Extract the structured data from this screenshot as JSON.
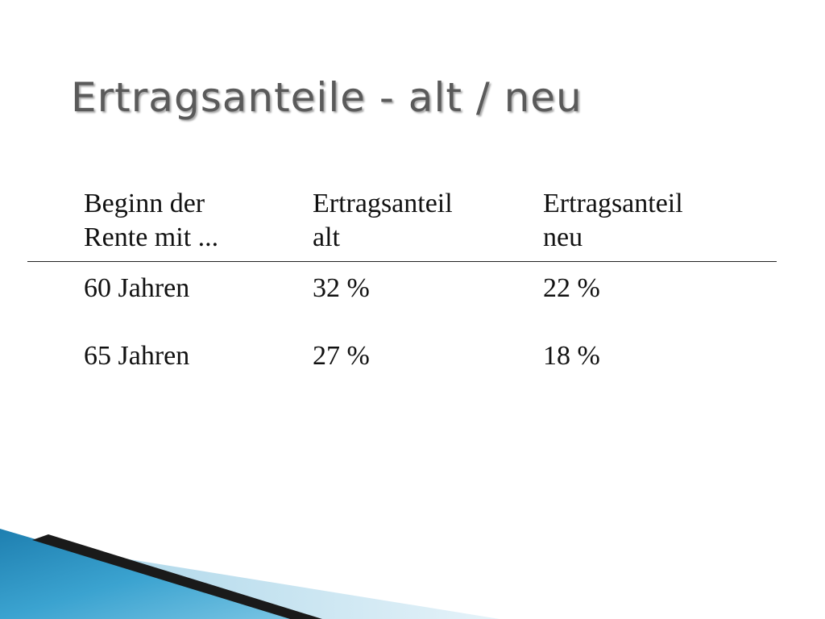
{
  "slide": {
    "title": "Ertragsanteile - alt / neu"
  },
  "table": {
    "headers": [
      {
        "line1": "Beginn der",
        "line2": "Rente mit ..."
      },
      {
        "line1": "Ertragsanteil",
        "line2": "alt"
      },
      {
        "line1": "Ertragsanteil",
        "line2": "neu"
      }
    ],
    "rows": [
      {
        "age": "60 Jahren",
        "old": "32 %",
        "new": "22 %"
      },
      {
        "age": "65 Jahren",
        "old": "27 %",
        "new": "18 %"
      }
    ]
  },
  "theme": {
    "title_color": "#5a5a5a",
    "text_color": "#111111",
    "accent_blue": "#2a8fc0",
    "accent_light": "#cfe6f0"
  }
}
